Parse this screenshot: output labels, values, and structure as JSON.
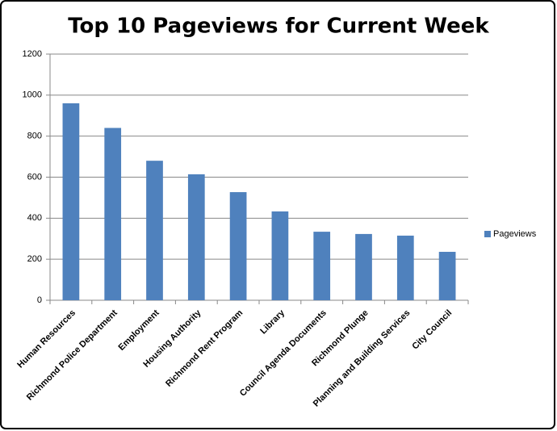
{
  "chart_data": {
    "type": "bar",
    "title": "Top 10 Pageviews for Current Week",
    "categories": [
      "Human Resources",
      "Richmond Police Department",
      "Employment",
      "Housing Authority",
      "Richmond Rent Program",
      "Library",
      "Council Agenda Documents",
      "Richmond Plunge",
      "Planning and Building Services",
      "City Council"
    ],
    "series": [
      {
        "name": "Pageviews",
        "color": "#4f81bd",
        "values": [
          960,
          840,
          680,
          614,
          527,
          433,
          334,
          323,
          315,
          236
        ]
      }
    ],
    "ylim": [
      0,
      1200
    ],
    "yticks": [
      0,
      200,
      400,
      600,
      800,
      1000,
      1200
    ],
    "grid": true,
    "legend": "right"
  }
}
